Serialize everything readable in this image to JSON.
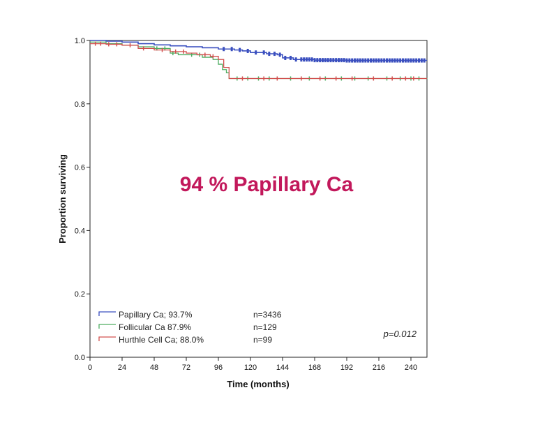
{
  "colors": {
    "papillary": "#3a4fbf",
    "follicular": "#4fae62",
    "hurthle": "#d2504f",
    "headline": "#c2185b",
    "axis": "#111111"
  },
  "annotation": {
    "headline": "94 % Papillary Ca",
    "p_value": "p=0.012"
  },
  "legend": {
    "entries": [
      {
        "label": "Papillary Ca; 93.7%",
        "n": "n=3436",
        "color_key": "papillary"
      },
      {
        "label": "Follicular Ca 87.9%",
        "n": "n=129",
        "color_key": "follicular"
      },
      {
        "label": "Hurthle Cell Ca; 88.0%",
        "n": "n=99",
        "color_key": "hurthle"
      }
    ]
  },
  "chart_data": {
    "type": "line",
    "title": "",
    "xlabel": "Time (months)",
    "ylabel": "Proportion surviving",
    "xlim": [
      0,
      252
    ],
    "ylim": [
      0,
      1.0
    ],
    "x_ticks": [
      0,
      24,
      48,
      72,
      96,
      120,
      144,
      168,
      192,
      216,
      240
    ],
    "y_ticks": [
      0.0,
      0.2,
      0.4,
      0.6,
      0.8,
      1.0
    ],
    "y_tick_labels": [
      "0.0",
      "0.2",
      "0.4",
      "0.6",
      "0.8",
      "1.0"
    ],
    "grid": false,
    "legend_position": "bottom-left",
    "step": true,
    "series": [
      {
        "name": "Papillary Ca; 93.7%",
        "color_key": "papillary",
        "points": [
          [
            0,
            1.0
          ],
          [
            12,
            0.998
          ],
          [
            24,
            0.995
          ],
          [
            36,
            0.99
          ],
          [
            48,
            0.986
          ],
          [
            60,
            0.983
          ],
          [
            72,
            0.98
          ],
          [
            84,
            0.977
          ],
          [
            96,
            0.973
          ],
          [
            108,
            0.97
          ],
          [
            114,
            0.967
          ],
          [
            120,
            0.962
          ],
          [
            132,
            0.958
          ],
          [
            140,
            0.955
          ],
          [
            144,
            0.945
          ],
          [
            152,
            0.94
          ],
          [
            168,
            0.938
          ],
          [
            192,
            0.937
          ],
          [
            216,
            0.937
          ],
          [
            252,
            0.937
          ]
        ],
        "censor_x": [
          100,
          106,
          112,
          118,
          124,
          130,
          134,
          138,
          142,
          146,
          150,
          154,
          158,
          160,
          162,
          164,
          166,
          168,
          170,
          172,
          174,
          176,
          178,
          180,
          182,
          184,
          186,
          188,
          190,
          192,
          194,
          196,
          198,
          200,
          202,
          204,
          206,
          208,
          210,
          212,
          214,
          216,
          218,
          220,
          222,
          224,
          226,
          228,
          230,
          232,
          234,
          236,
          238,
          240,
          242,
          244,
          246,
          248,
          250
        ]
      },
      {
        "name": "Follicular Ca 87.9%",
        "color_key": "follicular",
        "points": [
          [
            0,
            0.995
          ],
          [
            12,
            0.99
          ],
          [
            24,
            0.985
          ],
          [
            36,
            0.98
          ],
          [
            48,
            0.975
          ],
          [
            60,
            0.96
          ],
          [
            66,
            0.955
          ],
          [
            72,
            0.955
          ],
          [
            84,
            0.947
          ],
          [
            92,
            0.94
          ],
          [
            96,
            0.925
          ],
          [
            99,
            0.908
          ],
          [
            102,
            0.898
          ],
          [
            104,
            0.88
          ],
          [
            252,
            0.879
          ]
        ],
        "censor_x": [
          50,
          56,
          62,
          76,
          82,
          110,
          118,
          126,
          134,
          150,
          164,
          176,
          188,
          198,
          208,
          222,
          232,
          240,
          246
        ]
      },
      {
        "name": "Hurthle Cell Ca; 88.0%",
        "color_key": "hurthle",
        "points": [
          [
            0,
            0.99
          ],
          [
            12,
            0.988
          ],
          [
            24,
            0.985
          ],
          [
            36,
            0.975
          ],
          [
            48,
            0.97
          ],
          [
            60,
            0.965
          ],
          [
            72,
            0.96
          ],
          [
            80,
            0.955
          ],
          [
            90,
            0.95
          ],
          [
            96,
            0.94
          ],
          [
            100,
            0.915
          ],
          [
            104,
            0.88
          ],
          [
            252,
            0.88
          ]
        ],
        "censor_x": [
          4,
          8,
          14,
          20,
          30,
          40,
          54,
          64,
          70,
          86,
          92,
          114,
          130,
          140,
          158,
          172,
          184,
          196,
          212,
          226,
          236,
          242
        ]
      }
    ]
  }
}
